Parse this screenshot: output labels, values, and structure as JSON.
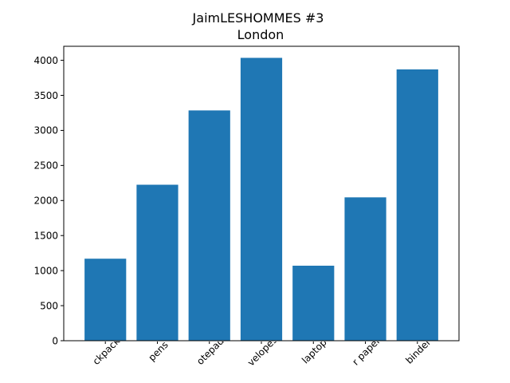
{
  "colors": {
    "bar": "#1f77b4",
    "axis": "#000000",
    "background": "#ffffff"
  },
  "chart_data": {
    "type": "bar",
    "title": "JaimLESHOMMES #3",
    "subtitle": "London",
    "xlabel": "",
    "ylabel": "",
    "categories": [
      "backpack",
      "pens",
      "notepad",
      "envelopes",
      "laptop",
      "paper paper",
      "binder"
    ],
    "visible_tick_labels": [
      "ckpack",
      "pens",
      "otepad",
      "velopes",
      "laptop",
      "r paper",
      "binder"
    ],
    "values": [
      1170,
      2225,
      3285,
      4035,
      1070,
      2045,
      3870
    ],
    "ylim": [
      0,
      4200
    ],
    "yticks": [
      0,
      500,
      1000,
      1500,
      2000,
      2500,
      3000,
      3500,
      4000
    ],
    "grid": false,
    "legend": "none",
    "xtick_rotation": 45
  }
}
